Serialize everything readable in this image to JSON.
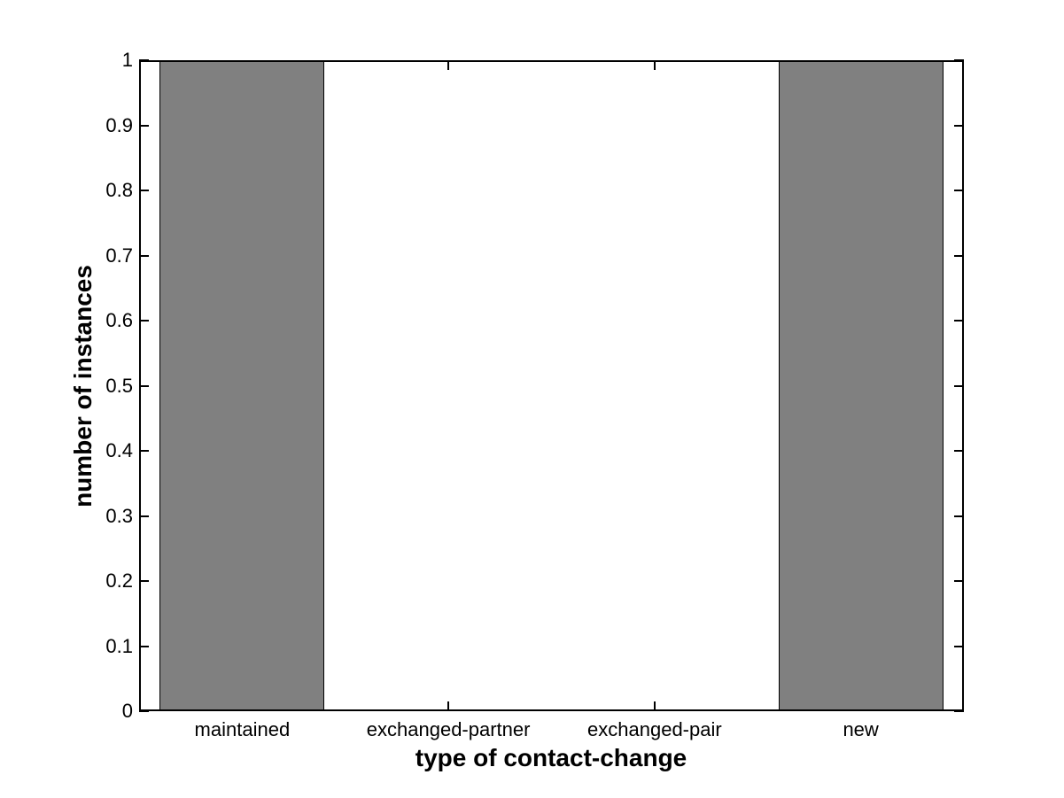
{
  "figure": {
    "background_color": "#ffffff",
    "title": ""
  },
  "chart_data": {
    "type": "bar",
    "title": "",
    "categories": [
      "maintained",
      "exchanged-partner",
      "exchanged-pair",
      "new"
    ],
    "values": [
      1,
      0,
      0,
      1
    ],
    "xlabel": "type of contact-change",
    "ylabel": "number of instances",
    "ylim": [
      0,
      1
    ],
    "yticks": [
      "0",
      "0.1",
      "0.2",
      "0.3",
      "0.4",
      "0.5",
      "0.6",
      "0.7",
      "0.8",
      "0.9",
      "1"
    ],
    "xlim": [
      0.5,
      4.5
    ],
    "bar_width_ratio": 0.8,
    "bar_fill_color": "#808080",
    "bar_edge_color": "#000000",
    "axis_color": "#000000",
    "grid": false,
    "legend": "none",
    "tick_direction": "in"
  }
}
